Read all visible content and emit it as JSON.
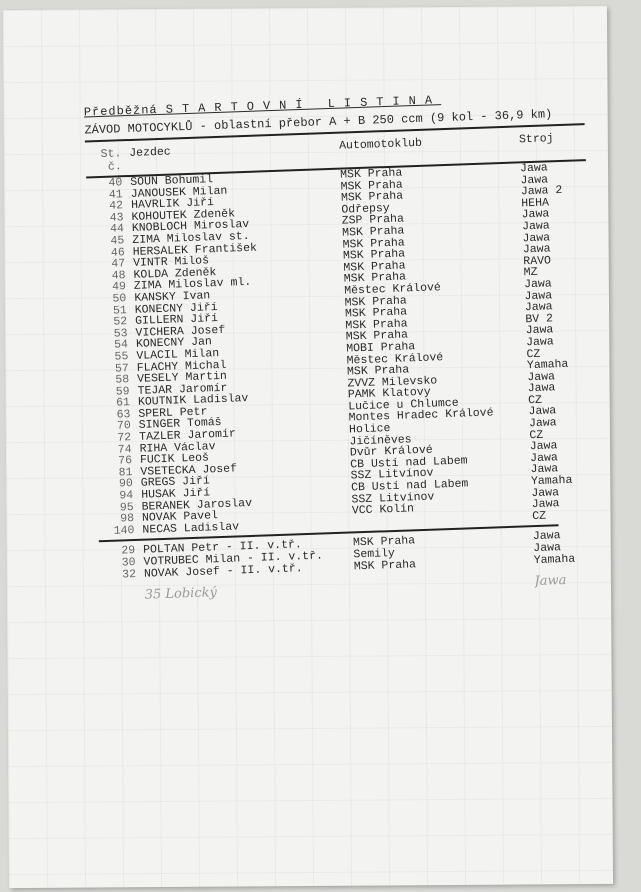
{
  "document": {
    "title_prefix": "Předběžná",
    "title_main": "STARTOVNÍ LISTINA",
    "subtitle": "ZÁVOD MOTOCYKLŮ - oblastní přebor A + B 250 ccm (9 kol - 36,9 km)",
    "columns": {
      "number": "St. č.",
      "rider": "Jezdec",
      "club": "Automotoklub",
      "machine": "Stroj"
    },
    "riders": [
      {
        "no": "40",
        "name": "ŠOUN Bohumil",
        "club": "MSK Praha",
        "machine": "Jawa"
      },
      {
        "no": "41",
        "name": "JANOUŠEK Milan",
        "club": "MSK Praha",
        "machine": "Jawa"
      },
      {
        "no": "42",
        "name": "HAVRLÍK Jiří",
        "club": "MSK Praha",
        "machine": "Jawa 2"
      },
      {
        "no": "43",
        "name": "KOHOUTEK Zdeněk",
        "club": "Odřepsy",
        "machine": "HEHA"
      },
      {
        "no": "44",
        "name": "KNOBLOCH Miroslav",
        "club": "ŽSP Praha",
        "machine": "Jawa"
      },
      {
        "no": "45",
        "name": "ZIMA Miloslav st.",
        "club": "MSK Praha",
        "machine": "Jawa"
      },
      {
        "no": "46",
        "name": "HERSÁLEK František",
        "club": "MSK Praha",
        "machine": "Jawa"
      },
      {
        "no": "47",
        "name": "VINTR Miloš",
        "club": "MSK Praha",
        "machine": "Jawa"
      },
      {
        "no": "48",
        "name": "KOLDA Zdeněk",
        "club": "MSK Praha",
        "machine": "RAVO"
      },
      {
        "no": "49",
        "name": "ZIMA Miloslav ml.",
        "club": "MSK Praha",
        "machine": "MZ"
      },
      {
        "no": "50",
        "name": "KÁNSKÝ Ivan",
        "club": "Městec Králové",
        "machine": "Jawa"
      },
      {
        "no": "51",
        "name": "KONEČNÝ Jiří",
        "club": "MSK Praha",
        "machine": "Jawa"
      },
      {
        "no": "52",
        "name": "GILLERN Jiří",
        "club": "MSK Praha",
        "machine": "Jawa"
      },
      {
        "no": "53",
        "name": "VICHERA Josef",
        "club": "MSK Praha",
        "machine": "BV 2"
      },
      {
        "no": "54",
        "name": "KONEČNÝ Jan",
        "club": "MSK Praha",
        "machine": "Jawa"
      },
      {
        "no": "55",
        "name": "VLÁČIL Milan",
        "club": "MOBI Praha",
        "machine": "Jawa"
      },
      {
        "no": "57",
        "name": "FLACHÝ Michal",
        "club": "Městec Králové",
        "machine": "ČZ"
      },
      {
        "no": "58",
        "name": "VESELÝ Martin",
        "club": "MSK Praha",
        "machine": "Yamaha"
      },
      {
        "no": "59",
        "name": "TEJAR Jaromír",
        "club": "ZVVZ Milevsko",
        "machine": "Jawa"
      },
      {
        "no": "61",
        "name": "KOUTNÍK Ladislav",
        "club": "PAMK Klatovy",
        "machine": "Jawa"
      },
      {
        "no": "63",
        "name": "ŠPERL Petr",
        "club": "Lučice u Chlumce",
        "machine": "ČZ"
      },
      {
        "no": "70",
        "name": "SINGER Tomáš",
        "club": "Montes Hradec Králové",
        "machine": "Jawa"
      },
      {
        "no": "72",
        "name": "TÄZLER Jaromír",
        "club": "Holice",
        "machine": "Jawa"
      },
      {
        "no": "74",
        "name": "ŘÍHA Václav",
        "club": "Jičíněves",
        "machine": "ČZ"
      },
      {
        "no": "76",
        "name": "FUČÍK Leoš",
        "club": "Dvůr Králové",
        "machine": "Jawa"
      },
      {
        "no": "81",
        "name": "VŠETEČKA Josef",
        "club": "ČB Ústí nad Labem",
        "machine": "Jawa"
      },
      {
        "no": "90",
        "name": "GREGŠ Jiří",
        "club": "SSZ Litvínov",
        "machine": "Jawa"
      },
      {
        "no": "94",
        "name": "HUSÁK Jiří",
        "club": "ČB Ústí nad Labem",
        "machine": "Yamaha"
      },
      {
        "no": "95",
        "name": "BERÁNEK Jaroslav",
        "club": "SSZ Litvínov",
        "machine": "Jawa"
      },
      {
        "no": "98",
        "name": "NOVÁK Pavel",
        "club": "VCC Kolín",
        "machine": "Jawa"
      },
      {
        "no": "140",
        "name": "NEČAS Ladislav",
        "club": "",
        "machine": "ČZ"
      }
    ],
    "second_class": [
      {
        "no": "29",
        "name": "POLTÁN Petr - II. v.tř.",
        "club": "MSK Praha",
        "machine": "Jawa"
      },
      {
        "no": "30",
        "name": "VOTRUBEC Milan - II. v.tř.",
        "club": "Semily",
        "machine": "Jawa"
      },
      {
        "no": "32",
        "name": "NOVÁK Josef - II. v.tř.",
        "club": "MSK Praha",
        "machine": "Yamaha"
      }
    ],
    "handwritten": {
      "entry": "35 Lobický",
      "machine": "Jawa"
    }
  }
}
